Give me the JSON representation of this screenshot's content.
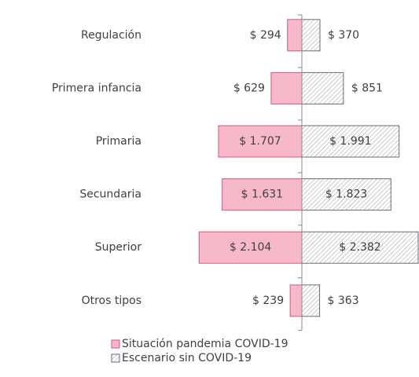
{
  "chart_data": {
    "type": "diverging_bar",
    "categories": [
      "Regulación",
      "Primera infancia",
      "Primaria",
      "Secundaria",
      "Superior",
      "Otros tipos"
    ],
    "series": [
      {
        "name": "Situación pandemia COVID-19",
        "color": "#f7b9ca",
        "values": [
          294,
          629,
          1707,
          1631,
          2104,
          239
        ],
        "value_labels": [
          "$ 294",
          "$ 629",
          "$ 1.707",
          "$ 1.631",
          "$ 2.104",
          "$ 239"
        ]
      },
      {
        "name": "Escenario sin COVID-19",
        "color": "#8a8a8a",
        "values": [
          370,
          851,
          1991,
          1823,
          2382,
          363
        ],
        "value_labels": [
          "$ 370",
          "$ 851",
          "$ 1.991",
          "$ 1.823",
          "$ 2.382",
          "$ 363"
        ]
      }
    ]
  }
}
